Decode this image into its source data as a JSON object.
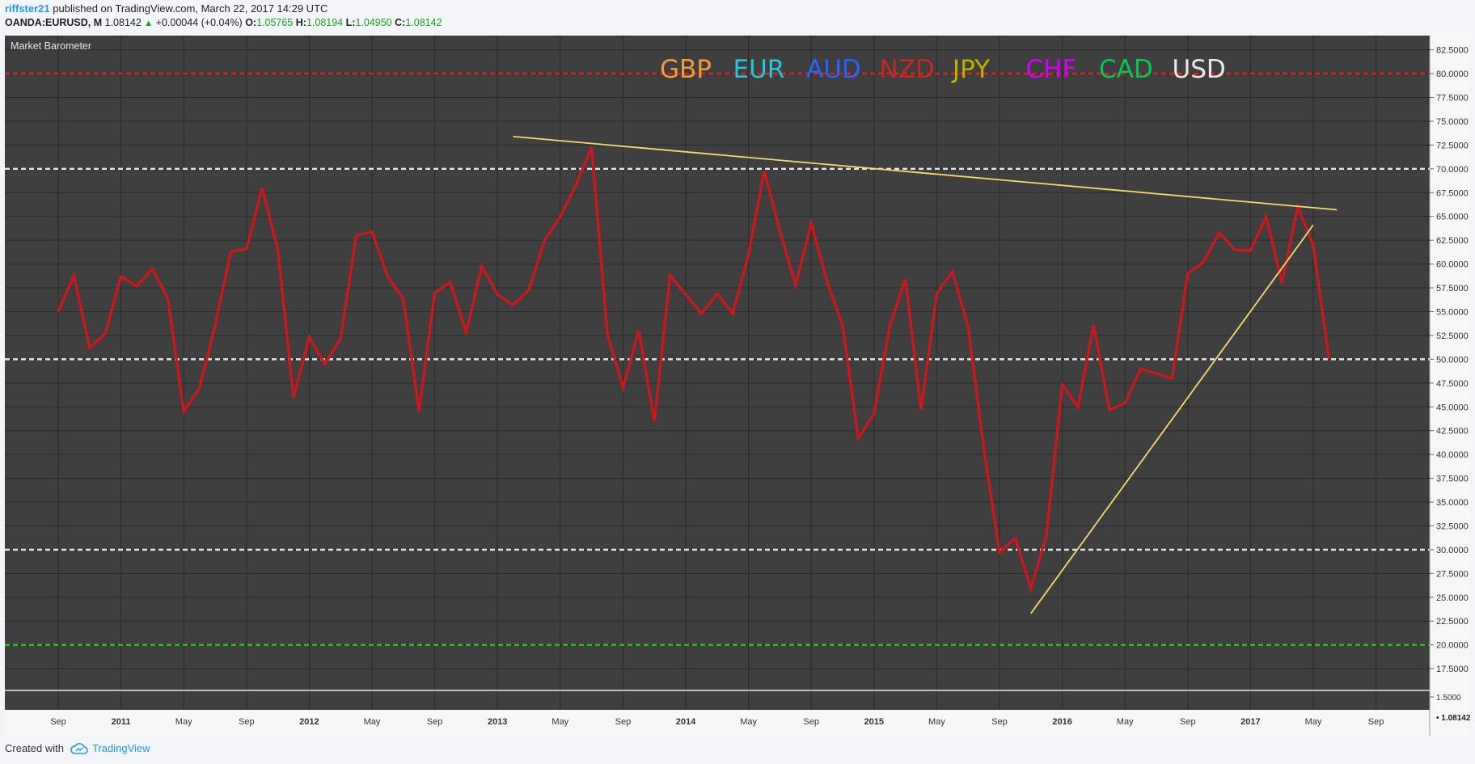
{
  "header": {
    "user": "riffster21",
    "published": "published on TradingView.com, March 22, 2017 14:29 UTC",
    "symbol": "OANDA:EURUSD, M",
    "price": "1.08142",
    "change": "+0.00044 (+0.04%)",
    "o_label": "O:",
    "o_value": "1.05765",
    "h_label": "H:",
    "h_value": "1.08194",
    "l_label": "L:",
    "l_value": "1.04950",
    "c_label": "C:",
    "c_value": "1.08142"
  },
  "footer": {
    "created_with": "Created with",
    "brand": "TradingView"
  },
  "chart_data": {
    "type": "line",
    "title": "Market Barometer",
    "legend": [
      {
        "label": "GBP",
        "color": "#f59a3c"
      },
      {
        "label": "EUR",
        "color": "#26c6da"
      },
      {
        "label": "AUD",
        "color": "#2962ff"
      },
      {
        "label": "NZD",
        "color": "#c62828"
      },
      {
        "label": "JPY",
        "color": "#c0b000"
      },
      {
        "label": "CHF",
        "color": "#d500f9"
      },
      {
        "label": "CAD",
        "color": "#00c853"
      },
      {
        "label": "USD",
        "color": "#e8e8e8"
      }
    ],
    "legend_position": "top-center",
    "x_ticks": [
      {
        "label": "Sep",
        "m": 0
      },
      {
        "label": "2011",
        "m": 4
      },
      {
        "label": "May",
        "m": 8
      },
      {
        "label": "Sep",
        "m": 12
      },
      {
        "label": "2012",
        "m": 16
      },
      {
        "label": "May",
        "m": 20
      },
      {
        "label": "Sep",
        "m": 24
      },
      {
        "label": "2013",
        "m": 28
      },
      {
        "label": "May",
        "m": 32
      },
      {
        "label": "Sep",
        "m": 36
      },
      {
        "label": "2014",
        "m": 40
      },
      {
        "label": "May",
        "m": 44
      },
      {
        "label": "Sep",
        "m": 48
      },
      {
        "label": "2015",
        "m": 52
      },
      {
        "label": "May",
        "m": 56
      },
      {
        "label": "Sep",
        "m": 60
      },
      {
        "label": "2016",
        "m": 64
      },
      {
        "label": "May",
        "m": 68
      },
      {
        "label": "Sep",
        "m": 72
      },
      {
        "label": "2017",
        "m": 76
      },
      {
        "label": "May",
        "m": 80
      },
      {
        "label": "Sep",
        "m": 84
      }
    ],
    "y_ticks": [
      "82.5000",
      "80.0000",
      "77.5000",
      "75.0000",
      "72.5000",
      "70.0000",
      "67.5000",
      "65.0000",
      "62.5000",
      "60.0000",
      "57.5000",
      "55.0000",
      "52.5000",
      "50.0000",
      "47.5000",
      "45.0000",
      "42.5000",
      "40.0000",
      "37.5000",
      "35.0000",
      "32.5000",
      "30.0000",
      "27.5000",
      "25.0000",
      "22.5000",
      "20.0000",
      "17.5000"
    ],
    "ylim": [
      15.3,
      84.0
    ],
    "grid": true,
    "series": [
      {
        "color": "#c8191f",
        "values": [
          55.0,
          58.8,
          51.2,
          52.7,
          58.7,
          57.7,
          59.5,
          56.3,
          44.5,
          47.0,
          53.5,
          61.3,
          61.6,
          68.0,
          61.5,
          46.0,
          52.3,
          49.5,
          52.2,
          63.0,
          63.4,
          58.7,
          56.3,
          44.5,
          57.0,
          58.1,
          52.8,
          59.8,
          56.8,
          55.7,
          57.3,
          62.5,
          65.0,
          68.3,
          72.3,
          52.7,
          47.0,
          53.0,
          43.5,
          58.8,
          56.8,
          54.8,
          56.9,
          54.8,
          61.0,
          69.8,
          63.5,
          57.8,
          64.3,
          58.2,
          53.5,
          41.7,
          44.3,
          53.5,
          58.4,
          44.7,
          56.9,
          59.2,
          53.4,
          40.6,
          29.7,
          31.2,
          25.9,
          31.6,
          47.3,
          45.0,
          53.6,
          44.7,
          45.4,
          49.0,
          48.5,
          48.0,
          59.0,
          60.2,
          63.3,
          61.5,
          61.4,
          65.0,
          58.0,
          66.0,
          62.0,
          50.0
        ]
      }
    ],
    "horizontal_levels": [
      {
        "value": 80,
        "color": "#e02020"
      },
      {
        "value": 70,
        "color": "#e6e6e6"
      },
      {
        "value": 50,
        "color": "#e6e6e6"
      },
      {
        "value": 30,
        "color": "#e6e6e6"
      },
      {
        "value": 20,
        "color": "#22cc22"
      }
    ],
    "trendlines": [
      {
        "color": "#f5d76e",
        "from": {
          "m": 29,
          "v": 73.4
        },
        "to": {
          "m": 81.5,
          "v": 65.7
        }
      },
      {
        "color": "#f5d76e",
        "from": {
          "m": 62,
          "v": 23.3
        },
        "to": {
          "m": 80,
          "v": 64.1
        }
      }
    ],
    "sub_pane": {
      "y_ticks": [
        "1.5000"
      ],
      "last_value": "1.08142"
    }
  }
}
